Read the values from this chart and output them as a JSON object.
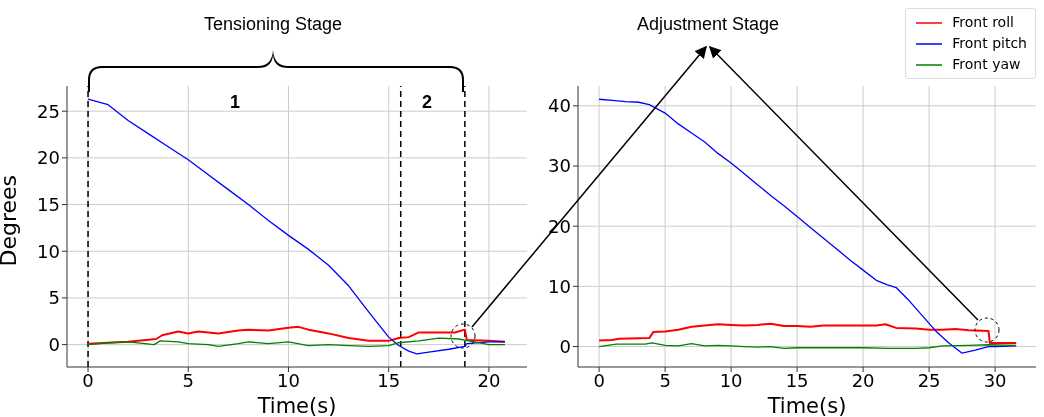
{
  "chart_data": [
    {
      "type": "line",
      "title": "Tensioning Stage",
      "xlabel": "Time(s)",
      "ylabel": "Degrees",
      "xlim": [
        -1.05,
        21.9
      ],
      "ylim": [
        -2.4,
        27.7
      ],
      "xticks": [
        0,
        5,
        10,
        15,
        20
      ],
      "yticks": [
        0,
        5,
        10,
        15,
        20,
        25
      ],
      "grid": true,
      "legend": false,
      "annotations": [
        "1",
        "2"
      ],
      "ref_lines": [
        {
          "axis": "x",
          "value": 0,
          "color": "#000000",
          "line_style": "dashed"
        },
        {
          "axis": "x",
          "value": 15.6,
          "color": "#000000",
          "line_style": "dashed"
        },
        {
          "axis": "x",
          "value": 18.8,
          "color": "#000000",
          "line_style": "dashed"
        }
      ],
      "series": [
        {
          "color": "#ff0000",
          "x": [
            0,
            1,
            2,
            3.4,
            3.7,
            4.5,
            5,
            5.5,
            6.5,
            7.5,
            8,
            9,
            10,
            10.5,
            11,
            12,
            13,
            14,
            15,
            15.5,
            16,
            16.5,
            17.5,
            18.3,
            18.8,
            18.9,
            20,
            20.8
          ],
          "values": [
            0.1,
            0.2,
            0.3,
            0.6,
            1.0,
            1.4,
            1.2,
            1.4,
            1.2,
            1.5,
            1.6,
            1.5,
            1.8,
            1.9,
            1.6,
            1.2,
            0.7,
            0.4,
            0.4,
            0.7,
            0.8,
            1.3,
            1.3,
            1.3,
            1.6,
            0.5,
            0.4,
            0.3
          ]
        },
        {
          "color": "#0000ff",
          "x": [
            0,
            1,
            2,
            3,
            4,
            5,
            6,
            7,
            8,
            9,
            10,
            11,
            12,
            13,
            14,
            15,
            15.5,
            16,
            16.4,
            17,
            18,
            18.8,
            18.9,
            20,
            20.8
          ],
          "values": [
            26.3,
            25.7,
            24,
            22.6,
            21.2,
            19.8,
            18.2,
            16.6,
            15,
            13.3,
            11.7,
            10.2,
            8.5,
            6.3,
            3.5,
            0.8,
            -0.1,
            -0.7,
            -1,
            -0.8,
            -0.5,
            -0.2,
            0.1,
            0.3,
            0.3
          ]
        },
        {
          "color": "#008000",
          "x": [
            0,
            1,
            2,
            3.3,
            3.6,
            4.5,
            5,
            6,
            6.5,
            7.5,
            8,
            9,
            10,
            11,
            12,
            13,
            14,
            15,
            15.5,
            16.5,
            17.5,
            18.5,
            19,
            20,
            20.8
          ],
          "values": [
            0,
            0.2,
            0.3,
            0,
            0.4,
            0.3,
            0.1,
            0,
            -0.2,
            0.1,
            0.3,
            0.1,
            0.3,
            -0.1,
            0,
            -0.1,
            -0.2,
            -0.1,
            0.2,
            0.4,
            0.7,
            0.6,
            0.4,
            0,
            0
          ]
        }
      ]
    },
    {
      "type": "line",
      "title": "Adjustment Stage",
      "xlabel": "Time(s)",
      "xlim": [
        -1.6,
        33.1
      ],
      "ylim": [
        -3.4,
        43.3
      ],
      "xticks": [
        0,
        5,
        10,
        15,
        20,
        25,
        30
      ],
      "yticks": [
        0,
        10,
        20,
        30,
        40
      ],
      "grid": true,
      "legend": "top right",
      "series": [
        {
          "name": "Front roll",
          "color": "#ff0000",
          "x": [
            0,
            1,
            1.5,
            3.8,
            4.1,
            5,
            6,
            7,
            8,
            9,
            10,
            11,
            12,
            13,
            14,
            15,
            16,
            17,
            18,
            19,
            20,
            21,
            21.7,
            22.5,
            24,
            25,
            26,
            27,
            28,
            29.5,
            29.6,
            31.6
          ],
          "values": [
            1,
            1.1,
            1.3,
            1.4,
            2.4,
            2.5,
            2.8,
            3.3,
            3.5,
            3.7,
            3.6,
            3.5,
            3.6,
            3.8,
            3.4,
            3.4,
            3.3,
            3.5,
            3.5,
            3.5,
            3.5,
            3.5,
            3.7,
            3.1,
            3.0,
            2.8,
            2.8,
            2.9,
            2.7,
            2.6,
            0.6,
            0.6
          ]
        },
        {
          "name": "Front pitch",
          "color": "#0000ff",
          "x": [
            0,
            1,
            2,
            3,
            3.8,
            5,
            6,
            7,
            8,
            9,
            10,
            11,
            12,
            13,
            14,
            15,
            16,
            17,
            18,
            19,
            20,
            21,
            21.8,
            22.5,
            23.5,
            24.5,
            25.5,
            26.5,
            27.5,
            28.5,
            29.5,
            30,
            31.6
          ],
          "values": [
            41.1,
            40.9,
            40.7,
            40.6,
            40.2,
            38.8,
            37,
            35.5,
            34,
            32.1,
            30.5,
            28.7,
            26.9,
            25.1,
            23.4,
            21.6,
            19.8,
            18,
            16.2,
            14.4,
            12.7,
            11,
            10.3,
            9.8,
            7.6,
            5.1,
            2.6,
            0.6,
            -1.1,
            -0.6,
            0,
            0,
            0.1
          ]
        },
        {
          "name": "Front yaw",
          "color": "#008000",
          "x": [
            0,
            1.3,
            3.5,
            4,
            5,
            6,
            7,
            8,
            9,
            10,
            11,
            12,
            13,
            14,
            15,
            17,
            20,
            22,
            24,
            25,
            26,
            28,
            29.5,
            31.6
          ],
          "values": [
            0,
            0.4,
            0.4,
            0.6,
            0.2,
            0.1,
            0.5,
            0.1,
            0.2,
            0.1,
            0,
            -0.1,
            0,
            -0.3,
            -0.2,
            -0.2,
            -0.2,
            -0.3,
            -0.3,
            -0.2,
            0.1,
            0.2,
            0.3,
            0.2
          ]
        }
      ]
    }
  ]
}
